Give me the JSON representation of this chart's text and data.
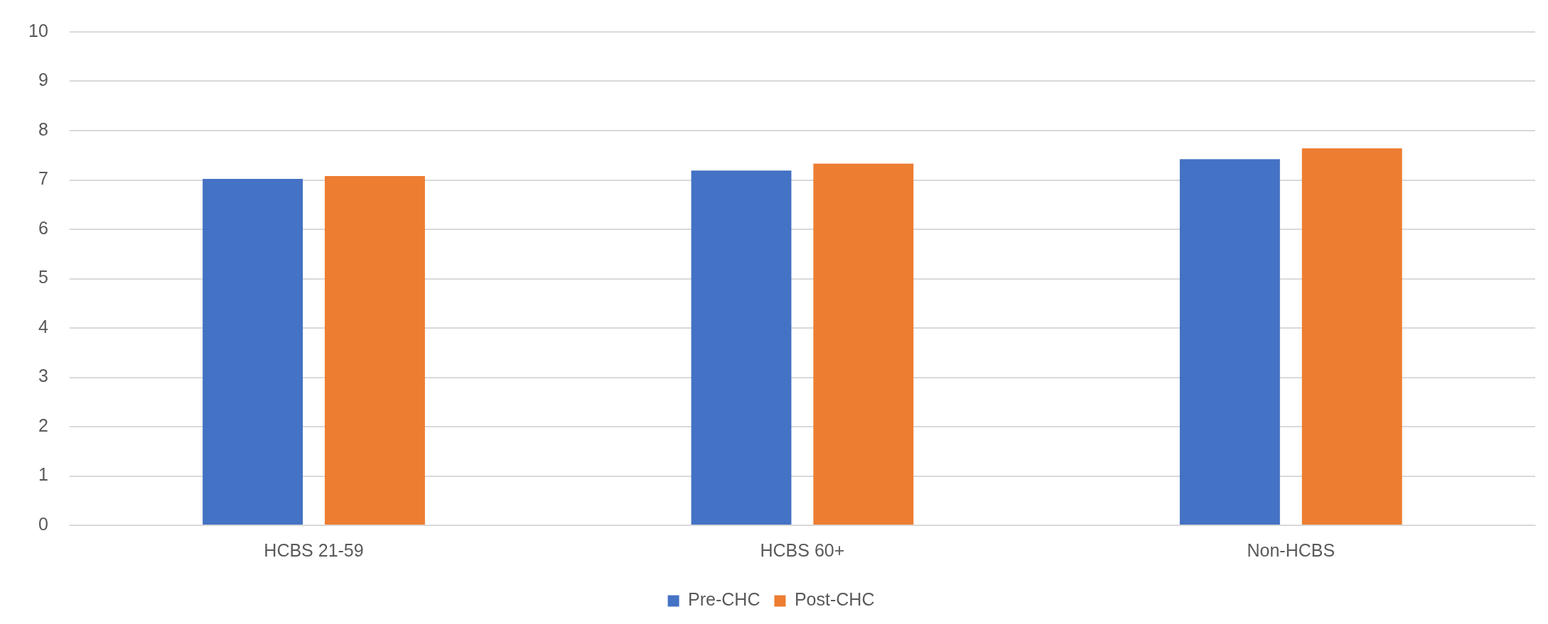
{
  "chart_data": {
    "type": "bar",
    "categories": [
      "HCBS 21-59",
      "HCBS 60+",
      "Non-HCBS"
    ],
    "series": [
      {
        "name": "Pre-CHC",
        "color": "#4472c4",
        "values": [
          7.02,
          7.19,
          7.42
        ]
      },
      {
        "name": "Post-CHC",
        "color": "#ed7d31",
        "values": [
          7.08,
          7.33,
          7.64
        ]
      }
    ],
    "ylim": [
      0,
      10
    ],
    "yticks": [
      0,
      1,
      2,
      3,
      4,
      5,
      6,
      7,
      8,
      9,
      10
    ],
    "grid": "y",
    "legend": "bottom"
  }
}
